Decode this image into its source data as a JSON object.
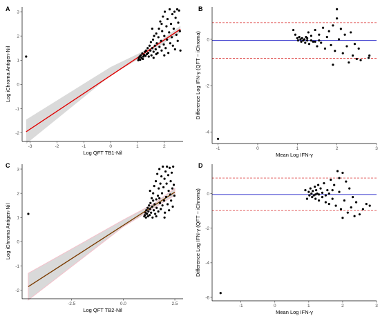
{
  "colors": {
    "point": "#000000",
    "panel_a_fit": "#e00000",
    "panel_c_fit": "#7a3b00",
    "confidence_band": "#d3d3d3",
    "panel_c_band_edge": "#f4b6c2",
    "mean_difference_line": "#3333cc",
    "limits_of_agreement": "#e05050",
    "axis": "#000000"
  },
  "chart_data": [
    {
      "panel": "A",
      "type": "scatter",
      "xlabel": "Log QFT TB1-Nil",
      "ylabel": "Log iChroma Antigen-Nil",
      "xlim": [
        -3.3,
        2.7
      ],
      "ylim": [
        -2.35,
        3.2
      ],
      "xticks": [
        -3,
        -2,
        -1,
        0,
        1,
        2
      ],
      "yticks": [
        -2,
        -1,
        0,
        1,
        2,
        3
      ],
      "grid": false,
      "fit_line": {
        "x": [
          -3.15,
          2.6
        ],
        "y": [
          -1.95,
          2.28
        ]
      },
      "confidence_band": {
        "x": [
          -3.15,
          0.0,
          1.5,
          2.6
        ],
        "lower": [
          -2.45,
          0.37,
          1.35,
          2.15
        ],
        "upper": [
          -1.45,
          0.72,
          1.52,
          2.42
        ]
      },
      "points": [
        [
          -3.15,
          1.15
        ],
        [
          1.03,
          1.0
        ],
        [
          1.05,
          1.08
        ],
        [
          1.08,
          1.15
        ],
        [
          1.1,
          1.02
        ],
        [
          1.12,
          1.2
        ],
        [
          1.15,
          1.1
        ],
        [
          1.18,
          1.28
        ],
        [
          1.2,
          1.05
        ],
        [
          1.22,
          1.15
        ],
        [
          1.25,
          1.22
        ],
        [
          1.28,
          1.35
        ],
        [
          1.3,
          1.18
        ],
        [
          1.32,
          1.4
        ],
        [
          1.35,
          1.25
        ],
        [
          1.38,
          1.5
        ],
        [
          1.4,
          1.3
        ],
        [
          1.42,
          1.15
        ],
        [
          1.45,
          1.6
        ],
        [
          1.48,
          1.4
        ],
        [
          1.5,
          1.75
        ],
        [
          1.52,
          1.2
        ],
        [
          1.55,
          1.5
        ],
        [
          1.58,
          1.85
        ],
        [
          1.6,
          1.35
        ],
        [
          1.62,
          2.0
        ],
        [
          1.65,
          1.6
        ],
        [
          1.68,
          1.45
        ],
        [
          1.7,
          2.1
        ],
        [
          1.72,
          1.7
        ],
        [
          1.75,
          1.3
        ],
        [
          1.78,
          1.95
        ],
        [
          1.8,
          2.3
        ],
        [
          1.82,
          1.55
        ],
        [
          1.85,
          2.6
        ],
        [
          1.88,
          1.8
        ],
        [
          1.9,
          1.4
        ],
        [
          1.92,
          2.2
        ],
        [
          1.95,
          2.8
        ],
        [
          1.98,
          1.65
        ],
        [
          2.0,
          2.0
        ],
        [
          2.02,
          3.0
        ],
        [
          2.05,
          1.5
        ],
        [
          2.08,
          2.4
        ],
        [
          2.1,
          1.85
        ],
        [
          2.12,
          2.7
        ],
        [
          2.15,
          1.3
        ],
        [
          2.18,
          2.15
        ],
        [
          2.2,
          3.1
        ],
        [
          2.22,
          1.7
        ],
        [
          2.25,
          2.5
        ],
        [
          2.28,
          1.95
        ],
        [
          2.3,
          2.9
        ],
        [
          2.32,
          1.6
        ],
        [
          2.35,
          2.3
        ],
        [
          2.38,
          3.0
        ],
        [
          2.4,
          1.45
        ],
        [
          2.42,
          2.75
        ],
        [
          2.45,
          2.05
        ],
        [
          2.48,
          3.1
        ],
        [
          2.5,
          1.8
        ],
        [
          2.52,
          2.55
        ],
        [
          2.55,
          3.05
        ],
        [
          2.58,
          2.2
        ],
        [
          2.6,
          1.4
        ],
        [
          1.6,
          1.1
        ],
        [
          1.7,
          1.25
        ],
        [
          1.55,
          2.3
        ],
        [
          1.9,
          2.5
        ],
        [
          2.0,
          1.2
        ]
      ]
    },
    {
      "panel": "B",
      "type": "scatter",
      "xlabel": "Mean Log IFN-γ",
      "ylabel": "Difference Log IFN-γ (QFT − iChroma)",
      "xlim": [
        -1.15,
        3.0
      ],
      "ylim": [
        -4.5,
        1.4
      ],
      "xticks": [
        -1,
        0,
        1,
        2,
        3
      ],
      "yticks": [
        -4,
        -2,
        0
      ],
      "grid": false,
      "mean_difference": -0.05,
      "limits_of_agreement": [
        0.72,
        -0.82
      ],
      "points": [
        [
          -1.0,
          -4.3
        ],
        [
          0.9,
          0.4
        ],
        [
          0.95,
          0.2
        ],
        [
          1.0,
          0.05
        ],
        [
          1.02,
          -0.05
        ],
        [
          1.05,
          0.1
        ],
        [
          1.08,
          0.0
        ],
        [
          1.1,
          -0.1
        ],
        [
          1.12,
          0.05
        ],
        [
          1.15,
          -0.05
        ],
        [
          1.18,
          0.0
        ],
        [
          1.2,
          -0.15
        ],
        [
          1.22,
          0.1
        ],
        [
          1.25,
          -0.05
        ],
        [
          1.28,
          0.3
        ],
        [
          1.3,
          -0.2
        ],
        [
          1.35,
          0.15
        ],
        [
          1.4,
          -0.1
        ],
        [
          1.45,
          0.4
        ],
        [
          1.5,
          -0.3
        ],
        [
          1.55,
          0.2
        ],
        [
          1.6,
          -0.15
        ],
        [
          1.65,
          0.5
        ],
        [
          1.7,
          -0.4
        ],
        [
          1.75,
          0.1
        ],
        [
          1.8,
          0.35
        ],
        [
          1.85,
          -0.25
        ],
        [
          1.9,
          0.6
        ],
        [
          1.95,
          -0.5
        ],
        [
          2.0,
          1.3
        ],
        [
          2.05,
          0.0
        ],
        [
          2.1,
          0.45
        ],
        [
          2.15,
          -0.6
        ],
        [
          2.2,
          0.2
        ],
        [
          2.25,
          -0.3
        ],
        [
          2.3,
          -1.0
        ],
        [
          2.35,
          0.3
        ],
        [
          2.4,
          -0.7
        ],
        [
          2.45,
          -0.2
        ],
        [
          2.5,
          -0.85
        ],
        [
          2.55,
          -0.4
        ],
        [
          2.6,
          -0.9
        ],
        [
          2.8,
          -0.8
        ],
        [
          2.82,
          -0.7
        ],
        [
          1.35,
          -0.05
        ],
        [
          1.45,
          -0.1
        ],
        [
          1.55,
          -0.05
        ],
        [
          1.25,
          0.05
        ],
        [
          2.0,
          0.9
        ],
        [
          1.9,
          -1.1
        ]
      ]
    },
    {
      "panel": "C",
      "type": "scatter",
      "xlabel": "Log QFT TB2-Nil",
      "ylabel": "Log iChroma Antigen-Nil",
      "xlim": [
        -4.9,
        2.9
      ],
      "ylim": [
        -2.35,
        3.2
      ],
      "xticks": [
        -2.5,
        0.0,
        2.5
      ],
      "xtick_labels": [
        "-2.5",
        "0.0",
        "2.5"
      ],
      "yticks": [
        -2,
        -1,
        0,
        1,
        2,
        3
      ],
      "grid": false,
      "fit_line": {
        "x": [
          -4.6,
          2.5
        ],
        "y": [
          -1.85,
          2.05
        ]
      },
      "confidence_band": {
        "x": [
          -4.6,
          0.0,
          1.5,
          2.5
        ],
        "lower": [
          -2.4,
          0.62,
          1.4,
          1.92
        ],
        "upper": [
          -1.3,
          0.9,
          1.58,
          2.2
        ]
      },
      "points": [
        [
          -4.6,
          1.15
        ],
        [
          1.02,
          1.05
        ],
        [
          1.05,
          1.1
        ],
        [
          1.08,
          1.2
        ],
        [
          1.1,
          1.0
        ],
        [
          1.12,
          1.3
        ],
        [
          1.15,
          1.15
        ],
        [
          1.18,
          1.4
        ],
        [
          1.2,
          1.05
        ],
        [
          1.22,
          1.25
        ],
        [
          1.25,
          1.5
        ],
        [
          1.28,
          1.1
        ],
        [
          1.3,
          1.35
        ],
        [
          1.32,
          1.6
        ],
        [
          1.35,
          1.2
        ],
        [
          1.38,
          1.8
        ],
        [
          1.4,
          1.45
        ],
        [
          1.42,
          1.0
        ],
        [
          1.45,
          2.0
        ],
        [
          1.48,
          1.3
        ],
        [
          1.5,
          2.3
        ],
        [
          1.52,
          1.55
        ],
        [
          1.55,
          1.15
        ],
        [
          1.58,
          2.5
        ],
        [
          1.6,
          1.75
        ],
        [
          1.62,
          1.4
        ],
        [
          1.65,
          2.8
        ],
        [
          1.68,
          1.9
        ],
        [
          1.7,
          1.25
        ],
        [
          1.72,
          2.2
        ],
        [
          1.75,
          3.0
        ],
        [
          1.78,
          1.6
        ],
        [
          1.8,
          2.4
        ],
        [
          1.82,
          1.35
        ],
        [
          1.85,
          2.7
        ],
        [
          1.88,
          2.0
        ],
        [
          1.9,
          1.5
        ],
        [
          1.92,
          3.1
        ],
        [
          1.95,
          2.25
        ],
        [
          1.98,
          1.7
        ],
        [
          2.0,
          2.6
        ],
        [
          2.02,
          1.2
        ],
        [
          2.05,
          2.9
        ],
        [
          2.08,
          1.85
        ],
        [
          2.1,
          2.4
        ],
        [
          2.12,
          3.1
        ],
        [
          2.15,
          1.55
        ],
        [
          2.18,
          2.75
        ],
        [
          2.2,
          2.1
        ],
        [
          2.22,
          1.3
        ],
        [
          2.25,
          3.05
        ],
        [
          2.28,
          1.95
        ],
        [
          2.3,
          2.5
        ],
        [
          2.32,
          1.7
        ],
        [
          2.35,
          2.85
        ],
        [
          2.38,
          2.2
        ],
        [
          2.4,
          1.45
        ],
        [
          2.42,
          3.1
        ],
        [
          2.45,
          2.35
        ],
        [
          2.48,
          1.9
        ],
        [
          1.3,
          2.1
        ],
        [
          1.45,
          1.7
        ],
        [
          1.6,
          1.05
        ],
        [
          1.75,
          1.8
        ],
        [
          2.0,
          1.0
        ]
      ]
    },
    {
      "panel": "D",
      "type": "scatter",
      "xlabel": "Mean Log IFN-γ",
      "ylabel": "Difference Log IFN-γ (QFT − iChroma)",
      "xlim": [
        -1.85,
        3.0
      ],
      "ylim": [
        -6.2,
        1.7
      ],
      "xticks": [
        -1,
        0,
        1,
        2,
        3
      ],
      "yticks": [
        -6,
        -4,
        -2,
        0
      ],
      "grid": false,
      "mean_difference": -0.05,
      "limits_of_agreement": [
        0.9,
        -0.98
      ],
      "points": [
        [
          -1.6,
          -5.75
        ],
        [
          0.9,
          0.2
        ],
        [
          0.95,
          -0.3
        ],
        [
          1.0,
          0.1
        ],
        [
          1.02,
          -0.1
        ],
        [
          1.05,
          0.3
        ],
        [
          1.08,
          0.0
        ],
        [
          1.1,
          -0.2
        ],
        [
          1.12,
          0.15
        ],
        [
          1.15,
          -0.1
        ],
        [
          1.18,
          0.4
        ],
        [
          1.2,
          -0.3
        ],
        [
          1.22,
          0.2
        ],
        [
          1.25,
          0.0
        ],
        [
          1.28,
          0.5
        ],
        [
          1.3,
          -0.4
        ],
        [
          1.35,
          0.3
        ],
        [
          1.4,
          -0.2
        ],
        [
          1.45,
          0.6
        ],
        [
          1.5,
          -0.5
        ],
        [
          1.55,
          0.2
        ],
        [
          1.6,
          -0.6
        ],
        [
          1.65,
          0.8
        ],
        [
          1.7,
          -0.3
        ],
        [
          1.75,
          0.5
        ],
        [
          1.8,
          -0.7
        ],
        [
          1.85,
          1.3
        ],
        [
          1.9,
          0.1
        ],
        [
          1.95,
          -0.9
        ],
        [
          2.0,
          1.2
        ],
        [
          2.05,
          -0.4
        ],
        [
          2.1,
          0.7
        ],
        [
          2.15,
          -1.1
        ],
        [
          2.2,
          0.3
        ],
        [
          2.25,
          -0.8
        ],
        [
          2.3,
          -0.2
        ],
        [
          2.35,
          -1.3
        ],
        [
          2.4,
          -0.5
        ],
        [
          2.5,
          -1.2
        ],
        [
          2.6,
          -0.9
        ],
        [
          2.7,
          -0.6
        ],
        [
          2.8,
          -0.7
        ],
        [
          1.3,
          -0.05
        ],
        [
          1.4,
          0.05
        ],
        [
          1.5,
          -0.1
        ],
        [
          1.2,
          -0.05
        ],
        [
          1.9,
          0.9
        ],
        [
          2.0,
          -1.4
        ],
        [
          1.7,
          0.2
        ],
        [
          1.6,
          0.0
        ]
      ]
    }
  ]
}
